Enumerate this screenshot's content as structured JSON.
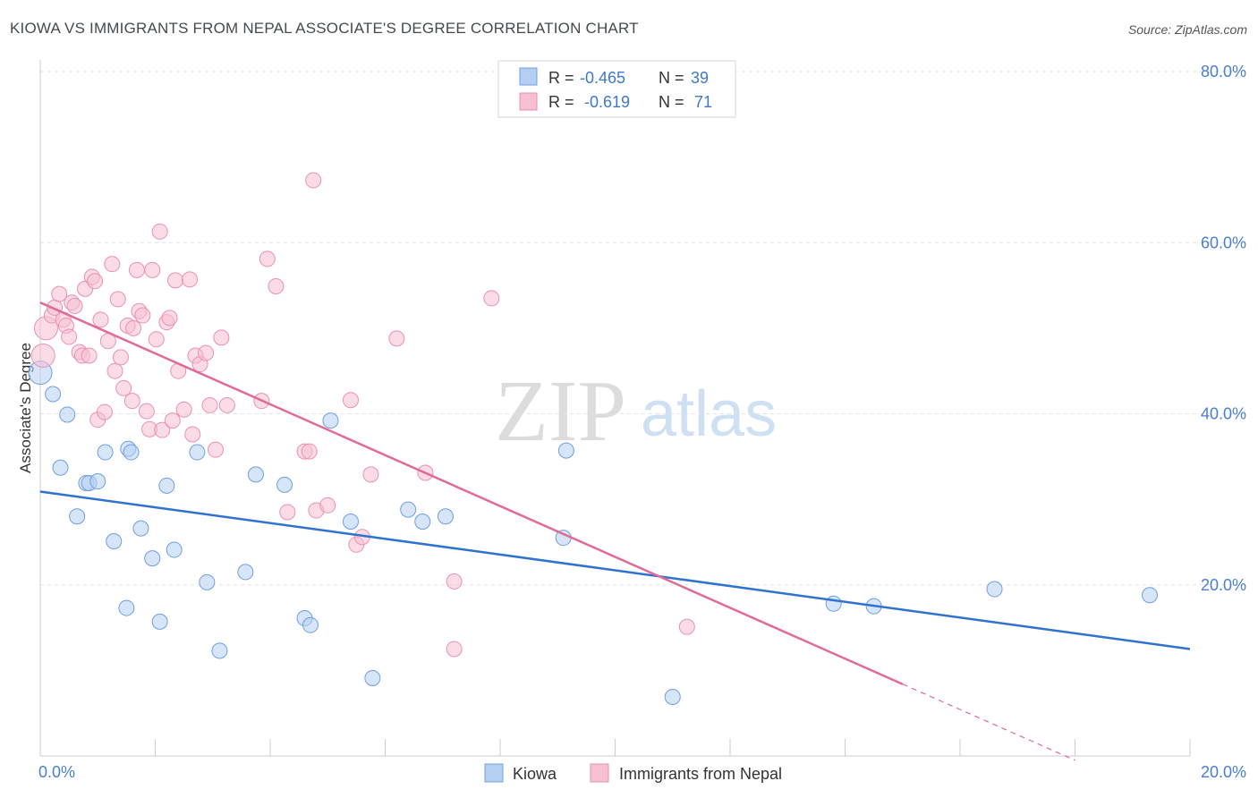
{
  "title": "KIOWA VS IMMIGRANTS FROM NEPAL ASSOCIATE'S DEGREE CORRELATION CHART",
  "source": "Source: ZipAtlas.com",
  "watermark": {
    "zip": "ZIP",
    "atlas": "atlas"
  },
  "legend": {
    "r_label": "R =",
    "n_label": "N =",
    "rows": [
      {
        "r": "-0.465",
        "n": "39"
      },
      {
        "r": "-0.619",
        "n": "71"
      }
    ]
  },
  "bottom_legend": [
    "Kiowa",
    "Immigrants from Nepal"
  ],
  "chart_data": {
    "type": "scatter",
    "title": "KIOWA VS IMMIGRANTS FROM NEPAL ASSOCIATE'S DEGREE CORRELATION CHART",
    "ylabel": "Associate's Degree",
    "xlabel": "",
    "xlim": [
      0,
      20
    ],
    "ylim": [
      0,
      80
    ],
    "x_ticks": [
      "0.0%",
      "20.0%"
    ],
    "y_ticks": [
      "20.0%",
      "40.0%",
      "60.0%",
      "80.0%"
    ],
    "y_tick_values": [
      20,
      40,
      60,
      80
    ],
    "grid": true,
    "legend_position": "top-center",
    "colors": {
      "kiowa_fill": "#b5cff2",
      "kiowa_stroke": "#6f9fe0",
      "kiowa_line": "#2f72d0",
      "nepal_fill": "#f7c0d2",
      "nepal_stroke": "#e991b0",
      "nepal_line": "#e26a98"
    },
    "series": [
      {
        "name": "Kiowa",
        "trend": {
          "x0": 0,
          "y0": 30.9,
          "x1": 20,
          "y1": 12.5
        },
        "points": [
          [
            0.0,
            44.8
          ],
          [
            0.22,
            42.3
          ],
          [
            0.35,
            33.7
          ],
          [
            0.47,
            39.9
          ],
          [
            0.64,
            28.0
          ],
          [
            0.8,
            31.9
          ],
          [
            0.85,
            31.9
          ],
          [
            1.0,
            32.1
          ],
          [
            1.13,
            35.5
          ],
          [
            1.28,
            25.1
          ],
          [
            1.5,
            17.3
          ],
          [
            1.53,
            35.9
          ],
          [
            1.58,
            35.5
          ],
          [
            1.75,
            26.6
          ],
          [
            1.95,
            23.1
          ],
          [
            2.08,
            15.7
          ],
          [
            2.2,
            31.6
          ],
          [
            2.33,
            24.1
          ],
          [
            2.73,
            35.5
          ],
          [
            2.9,
            20.3
          ],
          [
            3.12,
            12.3
          ],
          [
            3.57,
            21.5
          ],
          [
            3.75,
            32.9
          ],
          [
            4.25,
            31.7
          ],
          [
            4.6,
            16.1
          ],
          [
            4.7,
            15.3
          ],
          [
            5.05,
            39.2
          ],
          [
            5.4,
            27.4
          ],
          [
            5.78,
            9.1
          ],
          [
            6.4,
            28.8
          ],
          [
            6.65,
            27.4
          ],
          [
            7.05,
            28.0
          ],
          [
            9.1,
            25.5
          ],
          [
            9.15,
            35.7
          ],
          [
            11.0,
            6.9
          ],
          [
            13.8,
            17.8
          ],
          [
            14.5,
            17.5
          ],
          [
            16.6,
            19.5
          ],
          [
            19.3,
            18.8
          ]
        ]
      },
      {
        "name": "Immigrants from Nepal",
        "trend": {
          "x0": 0,
          "y0": 53.0,
          "x1": 15.0,
          "y1": 8.4
        },
        "trend_dashed": {
          "x0": 15.0,
          "y0": 8.4,
          "x1": 18.0,
          "y1": -0.5
        },
        "points": [
          [
            0.05,
            46.8
          ],
          [
            0.1,
            50.0
          ],
          [
            0.2,
            51.5
          ],
          [
            0.25,
            52.4
          ],
          [
            0.33,
            54.0
          ],
          [
            0.4,
            51.0
          ],
          [
            0.45,
            50.3
          ],
          [
            0.5,
            49.0
          ],
          [
            0.55,
            53.0
          ],
          [
            0.6,
            52.6
          ],
          [
            0.68,
            47.2
          ],
          [
            0.73,
            46.8
          ],
          [
            0.78,
            54.6
          ],
          [
            0.85,
            46.8
          ],
          [
            0.9,
            56.0
          ],
          [
            0.95,
            55.5
          ],
          [
            1.0,
            39.3
          ],
          [
            1.05,
            51.0
          ],
          [
            1.12,
            40.2
          ],
          [
            1.18,
            48.5
          ],
          [
            1.25,
            57.5
          ],
          [
            1.3,
            45.0
          ],
          [
            1.35,
            53.4
          ],
          [
            1.4,
            46.6
          ],
          [
            1.45,
            43.0
          ],
          [
            1.52,
            50.3
          ],
          [
            1.6,
            41.5
          ],
          [
            1.62,
            50.0
          ],
          [
            1.68,
            56.8
          ],
          [
            1.72,
            52.0
          ],
          [
            1.78,
            51.5
          ],
          [
            1.85,
            40.3
          ],
          [
            1.9,
            38.2
          ],
          [
            1.95,
            56.8
          ],
          [
            2.02,
            48.7
          ],
          [
            2.08,
            61.3
          ],
          [
            2.12,
            38.1
          ],
          [
            2.2,
            50.7
          ],
          [
            2.25,
            51.2
          ],
          [
            2.3,
            39.2
          ],
          [
            2.35,
            55.6
          ],
          [
            2.4,
            45.0
          ],
          [
            2.5,
            40.5
          ],
          [
            2.6,
            55.7
          ],
          [
            2.65,
            37.6
          ],
          [
            2.7,
            46.8
          ],
          [
            2.78,
            45.8
          ],
          [
            2.88,
            47.1
          ],
          [
            2.95,
            41.0
          ],
          [
            3.05,
            35.8
          ],
          [
            3.15,
            48.9
          ],
          [
            3.25,
            41.0
          ],
          [
            3.85,
            41.5
          ],
          [
            3.95,
            58.1
          ],
          [
            4.1,
            54.9
          ],
          [
            4.3,
            28.5
          ],
          [
            4.6,
            35.6
          ],
          [
            4.68,
            35.6
          ],
          [
            4.75,
            67.3
          ],
          [
            4.8,
            28.7
          ],
          [
            5.0,
            29.3
          ],
          [
            5.4,
            41.6
          ],
          [
            5.5,
            24.7
          ],
          [
            5.6,
            25.6
          ],
          [
            5.75,
            32.9
          ],
          [
            6.2,
            48.8
          ],
          [
            6.7,
            33.1
          ],
          [
            7.2,
            20.4
          ],
          [
            7.2,
            12.5
          ],
          [
            7.85,
            53.5
          ],
          [
            11.25,
            15.1
          ]
        ]
      }
    ]
  }
}
